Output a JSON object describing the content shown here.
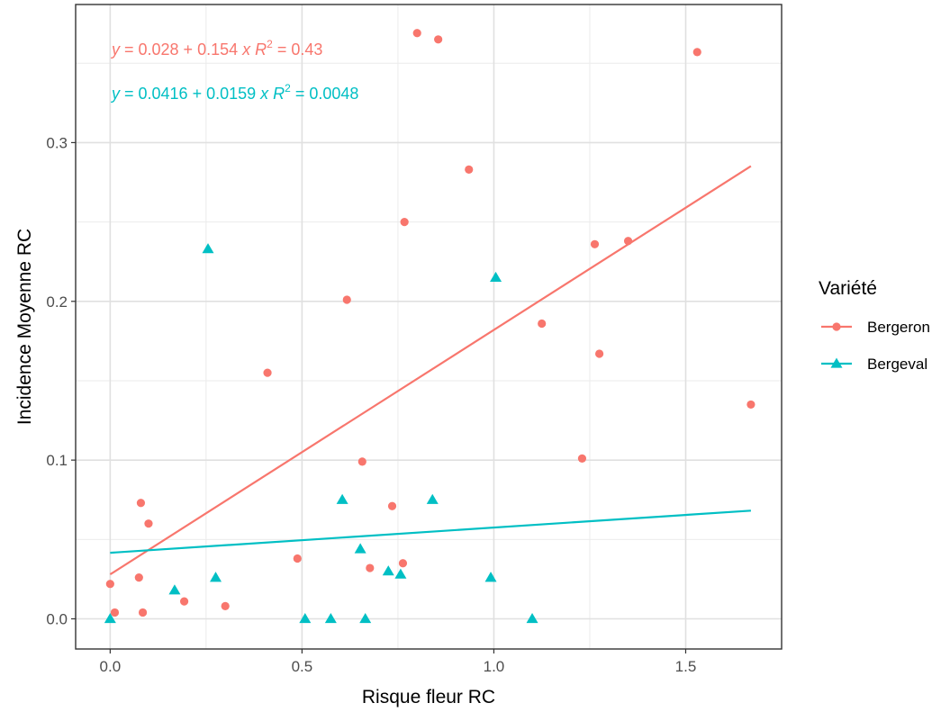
{
  "chart_data": {
    "type": "scatter",
    "xlabel": "Risque fleur RC",
    "ylabel": "Incidence Moyenne RC",
    "xlim": [
      -0.09,
      1.75
    ],
    "ylim": [
      -0.019,
      0.387
    ],
    "x_ticks": [
      0.0,
      0.5,
      1.0,
      1.5
    ],
    "x_tick_labels": [
      "0.0",
      "0.5",
      "1.0",
      "1.5"
    ],
    "y_ticks": [
      0.0,
      0.1,
      0.2,
      0.3
    ],
    "y_tick_labels": [
      "0.0",
      "0.1",
      "0.2",
      "0.3"
    ],
    "grid": true,
    "legend": {
      "title": "Variété",
      "position": "right"
    },
    "series": [
      {
        "name": "Bergeron",
        "color": "#F8766D",
        "marker": "circle",
        "points": [
          [
            0.0,
            0.022
          ],
          [
            0.012,
            0.004
          ],
          [
            0.075,
            0.026
          ],
          [
            0.08,
            0.073
          ],
          [
            0.085,
            0.004
          ],
          [
            0.1,
            0.06
          ],
          [
            0.193,
            0.011
          ],
          [
            0.3,
            0.008
          ],
          [
            0.41,
            0.155
          ],
          [
            0.488,
            0.038
          ],
          [
            0.617,
            0.201
          ],
          [
            0.657,
            0.099
          ],
          [
            0.677,
            0.032
          ],
          [
            0.735,
            0.071
          ],
          [
            0.763,
            0.035
          ],
          [
            0.767,
            0.25
          ],
          [
            0.8,
            0.369
          ],
          [
            0.855,
            0.365
          ],
          [
            0.935,
            0.283
          ],
          [
            1.125,
            0.186
          ],
          [
            1.23,
            0.101
          ],
          [
            1.263,
            0.236
          ],
          [
            1.275,
            0.167
          ],
          [
            1.35,
            0.238
          ],
          [
            1.53,
            0.357
          ],
          [
            1.67,
            0.135
          ]
        ],
        "fit": {
          "intercept": 0.028,
          "slope": 0.154,
          "x_range": [
            0.0,
            1.67
          ]
        },
        "equation": {
          "y": "y",
          "eq_rest": " = 0.028 + 0.154 ",
          "x": "x",
          "r": "R",
          "sup": "2",
          "r_rest": " = 0.43"
        }
      },
      {
        "name": "Bergeval",
        "color": "#00BFC4",
        "marker": "triangle",
        "points": [
          [
            0.0,
            0.0
          ],
          [
            0.168,
            0.018
          ],
          [
            0.255,
            0.233
          ],
          [
            0.275,
            0.026
          ],
          [
            0.508,
            0.0
          ],
          [
            0.575,
            0.0
          ],
          [
            0.605,
            0.075
          ],
          [
            0.652,
            0.044
          ],
          [
            0.665,
            0.0
          ],
          [
            0.725,
            0.03
          ],
          [
            0.757,
            0.028
          ],
          [
            0.84,
            0.075
          ],
          [
            0.992,
            0.026
          ],
          [
            1.005,
            0.215
          ],
          [
            1.1,
            0.0
          ]
        ],
        "fit": {
          "intercept": 0.0416,
          "slope": 0.0159,
          "x_range": [
            0.0,
            1.67
          ]
        },
        "equation": {
          "y": "y",
          "eq_rest": " = 0.0416 + 0.0159 ",
          "x": "x",
          "r": "R",
          "sup": "2",
          "r_rest": " = 0.0048"
        }
      }
    ]
  }
}
